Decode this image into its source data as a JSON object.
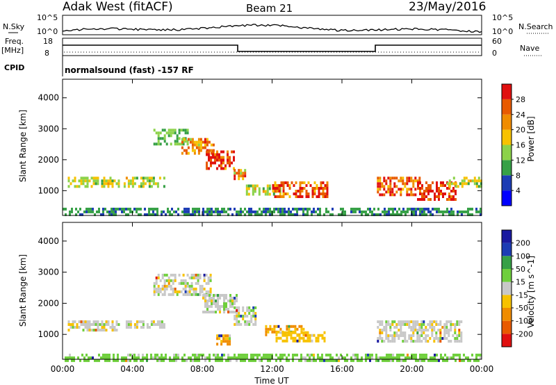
{
  "header": {
    "station": "Adak West (fitACF)",
    "beam": "Beam 21",
    "date": "23/May/2016"
  },
  "panels": {
    "nsky_label": "N.Sky",
    "nsky_ticks": [
      "10^5",
      "10^0"
    ],
    "nsearch_label": "N.Search",
    "nsearch_ticks": [
      "10^5",
      "10^0"
    ],
    "freq_label_1": "Freq.",
    "freq_label_2": "[MHz]",
    "freq_ticks": [
      "18",
      "8"
    ],
    "nave_label": "Nave",
    "nave_ticks": [
      "60",
      "0"
    ],
    "cpid_label": "CPID",
    "cpid_text": "normalsound (fast) -157 RF"
  },
  "colors": {
    "power": [
      "#0000ff",
      "#1c3cb4",
      "#36a046",
      "#8cd24a",
      "#f7c200",
      "#f08c00",
      "#e85a00",
      "#e01010"
    ],
    "velocity": [
      "#e01010",
      "#e85a00",
      "#f08c00",
      "#f7c200",
      "#c8c8c8",
      "#6fcf3c",
      "#36a046",
      "#1c3cb4",
      "#1a1aa0"
    ]
  },
  "chart_data": [
    {
      "type": "heatmap",
      "quantity": "Power",
      "ylabel": "Slant Range [km]",
      "yticks": [
        "4000",
        "3000",
        "2000",
        "1000"
      ],
      "ylim": [
        200,
        4600
      ],
      "xlim": [
        0,
        24
      ],
      "colorbar_label": "Power [dB]",
      "colorbar_ticks": [
        "28",
        "24",
        "20",
        "16",
        "12",
        "8",
        "4"
      ],
      "colorbar_range": [
        0,
        32
      ],
      "regions": [
        {
          "t0": 0.3,
          "t1": 3.2,
          "r0": 1100,
          "r1": 1450,
          "level": 4
        },
        {
          "t0": 3.5,
          "t1": 5.8,
          "r0": 1150,
          "r1": 1450,
          "level": 4
        },
        {
          "t0": 5.2,
          "t1": 7.2,
          "r0": 2500,
          "r1": 3000,
          "level": 3
        },
        {
          "t0": 6.8,
          "t1": 8.6,
          "r0": 2200,
          "r1": 2700,
          "level": 6
        },
        {
          "t0": 8.2,
          "t1": 9.8,
          "r0": 1750,
          "r1": 2300,
          "level": 8
        },
        {
          "t0": 9.8,
          "t1": 10.4,
          "r0": 1400,
          "r1": 1700,
          "level": 6
        },
        {
          "t0": 10.5,
          "t1": 12.5,
          "r0": 850,
          "r1": 1200,
          "level": 4
        },
        {
          "t0": 12.0,
          "t1": 15.2,
          "r0": 800,
          "r1": 1300,
          "level": 7
        },
        {
          "t0": 18.0,
          "t1": 20.4,
          "r0": 900,
          "r1": 1450,
          "level": 7
        },
        {
          "t0": 20.3,
          "t1": 22.5,
          "r0": 700,
          "r1": 1300,
          "level": 9
        },
        {
          "t0": 22.0,
          "t1": 24.0,
          "r0": 1150,
          "r1": 1450,
          "level": 4
        },
        {
          "t0": 0.0,
          "t1": 24.0,
          "r0": 200,
          "r1": 450,
          "level": 2
        }
      ]
    },
    {
      "type": "heatmap",
      "quantity": "Velocity",
      "ylabel": "Slant Range [km]",
      "yticks": [
        "4000",
        "3000",
        "2000",
        "1000"
      ],
      "ylim": [
        200,
        4600
      ],
      "xlim": [
        0,
        24
      ],
      "xticks": [
        "00:00",
        "04:00",
        "08:00",
        "12:00",
        "16:00",
        "20:00",
        "00:00"
      ],
      "xlabel": "Time UT",
      "colorbar_label": "Velocity [m s^-1]",
      "colorbar_ticks": [
        "200",
        "100",
        "50",
        "15",
        "-15",
        "-50",
        "-100",
        "-200"
      ],
      "colorbar_range": [
        -250,
        250
      ],
      "regions": [
        {
          "t0": 0.3,
          "t1": 3.2,
          "r0": 1150,
          "r1": 1450,
          "vel": 0
        },
        {
          "t0": 3.5,
          "t1": 5.8,
          "r0": 1200,
          "r1": 1450,
          "vel": 0
        },
        {
          "t0": 5.2,
          "t1": 8.5,
          "r0": 2300,
          "r1": 2950,
          "vel": 0
        },
        {
          "t0": 8.0,
          "t1": 10.0,
          "r0": 1700,
          "r1": 2300,
          "vel": 0
        },
        {
          "t0": 9.8,
          "t1": 11.0,
          "r0": 1350,
          "r1": 1900,
          "vel": 0
        },
        {
          "t0": 8.8,
          "t1": 9.6,
          "r0": 700,
          "r1": 1000,
          "vel": -50
        },
        {
          "t0": 11.6,
          "t1": 13.8,
          "r0": 950,
          "r1": 1300,
          "vel": -50
        },
        {
          "t0": 12.2,
          "t1": 15.0,
          "r0": 800,
          "r1": 1100,
          "vel": -30
        },
        {
          "t0": 18.0,
          "t1": 22.8,
          "r0": 800,
          "r1": 1450,
          "vel": 0
        },
        {
          "t0": 0.0,
          "t1": 24.0,
          "r0": 200,
          "r1": 380,
          "vel": 30
        }
      ]
    }
  ]
}
